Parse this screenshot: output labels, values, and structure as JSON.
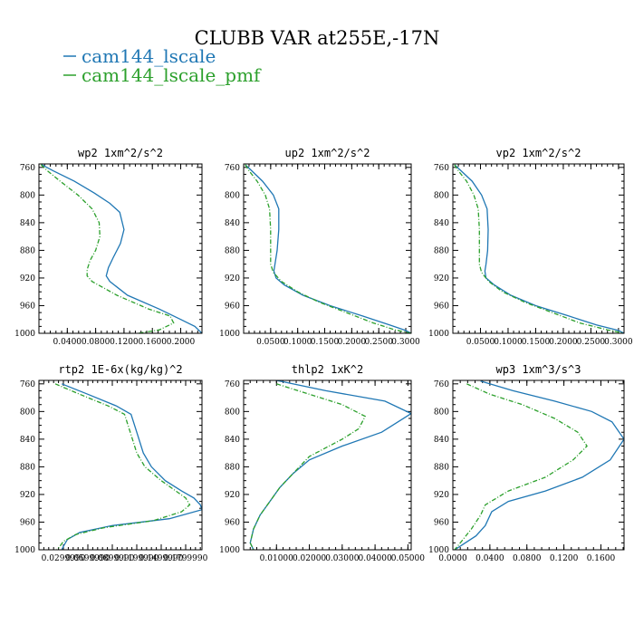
{
  "figure": {
    "title": "CLUBB VAR at255E,-17N",
    "legend": [
      {
        "label": "cam144_lscale",
        "color": "#1f77b4",
        "dash": "none"
      },
      {
        "label": "cam144_lscale_pmf",
        "color": "#2ca02c",
        "dash": "5,2,1,2"
      }
    ]
  },
  "chart_data": [
    {
      "type": "line",
      "title": "wp2  1xm^2/s^2",
      "xlim": [
        0.0,
        0.23
      ],
      "ylim": [
        1000,
        755
      ],
      "xticks": [
        "0.0400",
        "0.0800",
        "0.1200",
        "0.1600",
        "0.2000"
      ],
      "xtick_values": [
        0.04,
        0.08,
        0.12,
        0.16,
        0.2
      ],
      "yticks": [
        "760",
        "800",
        "840",
        "880",
        "920",
        "960",
        "1000"
      ],
      "series": [
        {
          "name": "cam144_lscale",
          "color": "#1f77b4",
          "x": [
            0.004,
            0.02,
            0.05,
            0.078,
            0.1,
            0.114,
            0.12,
            0.115,
            0.105,
            0.098,
            0.095,
            0.1,
            0.125,
            0.17,
            0.2,
            0.22,
            0.23
          ],
          "y": [
            756,
            765,
            780,
            797,
            812,
            825,
            850,
            870,
            890,
            905,
            917,
            925,
            945,
            965,
            980,
            990,
            1000
          ]
        },
        {
          "name": "cam144_lscale_pmf",
          "color": "#2ca02c",
          "x": [
            0.003,
            0.012,
            0.03,
            0.055,
            0.075,
            0.085,
            0.086,
            0.08,
            0.072,
            0.068,
            0.068,
            0.075,
            0.11,
            0.155,
            0.185,
            0.19,
            0.17,
            0.14
          ],
          "y": [
            756,
            765,
            780,
            800,
            820,
            840,
            860,
            880,
            895,
            908,
            917,
            925,
            945,
            965,
            975,
            985,
            995,
            1000
          ]
        }
      ]
    },
    {
      "type": "line",
      "title": "up2  1xm^2/s^2",
      "xlim": [
        0.0,
        0.31
      ],
      "ylim": [
        1000,
        755
      ],
      "xticks": [
        "0.0500",
        "0.1000",
        "0.1500",
        "0.2000",
        "0.2500",
        "0.3000"
      ],
      "xtick_values": [
        0.05,
        0.1,
        0.15,
        0.2,
        0.25,
        0.3
      ],
      "yticks": [
        "760",
        "800",
        "840",
        "880",
        "920",
        "960",
        "1000"
      ],
      "series": [
        {
          "name": "cam144_lscale",
          "color": "#1f77b4",
          "x": [
            0.003,
            0.015,
            0.035,
            0.055,
            0.065,
            0.065,
            0.062,
            0.058,
            0.056,
            0.06,
            0.075,
            0.11,
            0.16,
            0.22,
            0.27,
            0.3,
            0.31
          ],
          "y": [
            756,
            765,
            780,
            800,
            820,
            850,
            880,
            900,
            910,
            920,
            930,
            945,
            960,
            975,
            988,
            996,
            1000
          ]
        },
        {
          "name": "cam144_lscale_pmf",
          "color": "#2ca02c",
          "x": [
            0.003,
            0.01,
            0.025,
            0.04,
            0.048,
            0.05,
            0.05,
            0.05,
            0.055,
            0.07,
            0.1,
            0.14,
            0.19,
            0.24,
            0.28,
            0.31
          ],
          "y": [
            756,
            765,
            780,
            800,
            820,
            850,
            880,
            900,
            912,
            925,
            940,
            955,
            970,
            985,
            995,
            1000
          ]
        }
      ]
    },
    {
      "type": "line",
      "title": "vp2  1xm^2/s^2",
      "xlim": [
        0.0,
        0.31
      ],
      "ylim": [
        1000,
        755
      ],
      "xticks": [
        "0.0500",
        "0.1000",
        "0.1500",
        "0.2000",
        "0.2500",
        "0.3000"
      ],
      "xtick_values": [
        0.05,
        0.1,
        0.15,
        0.2,
        0.25,
        0.3
      ],
      "yticks": [
        "760",
        "800",
        "840",
        "880",
        "920",
        "960",
        "1000"
      ],
      "series": [
        {
          "name": "cam144_lscale",
          "color": "#1f77b4",
          "x": [
            0.003,
            0.015,
            0.035,
            0.052,
            0.062,
            0.064,
            0.063,
            0.06,
            0.058,
            0.06,
            0.075,
            0.105,
            0.15,
            0.21,
            0.26,
            0.3,
            0.31
          ],
          "y": [
            756,
            765,
            780,
            800,
            820,
            850,
            880,
            900,
            910,
            920,
            930,
            945,
            960,
            975,
            988,
            996,
            1000
          ]
        },
        {
          "name": "cam144_lscale_pmf",
          "color": "#2ca02c",
          "x": [
            0.003,
            0.01,
            0.025,
            0.038,
            0.046,
            0.048,
            0.048,
            0.048,
            0.052,
            0.065,
            0.09,
            0.13,
            0.18,
            0.23,
            0.28,
            0.31
          ],
          "y": [
            756,
            765,
            780,
            800,
            820,
            850,
            880,
            900,
            912,
            925,
            940,
            955,
            970,
            985,
            995,
            1000
          ]
        }
      ]
    },
    {
      "type": "line",
      "title": "rtp2  1E-6x(kg/kg)^2",
      "xlim": [
        0.0,
        0.2
      ],
      "ylim": [
        1000,
        755
      ],
      "xticks": [
        "0.0299990",
        "0.0599990",
        "0.0899990",
        "0.1199990",
        "0.1499990",
        "0.1799990"
      ],
      "xtick_values": [
        0.029999,
        0.059999,
        0.089999,
        0.119999,
        0.149999,
        0.179999
      ],
      "yticks": [
        "760",
        "800",
        "840",
        "880",
        "920",
        "960",
        "1000"
      ],
      "series": [
        {
          "name": "cam144_lscale",
          "color": "#1f77b4",
          "x": [
            0.028,
            0.06,
            0.095,
            0.113,
            0.12,
            0.128,
            0.138,
            0.155,
            0.175,
            0.19,
            0.198,
            0.2,
            0.16,
            0.09,
            0.05,
            0.035,
            0.03,
            0.028
          ],
          "y": [
            760,
            775,
            792,
            804,
            830,
            860,
            880,
            900,
            915,
            925,
            935,
            942,
            955,
            965,
            975,
            985,
            995,
            1000
          ]
        },
        {
          "name": "cam144_lscale_pmf",
          "color": "#2ca02c",
          "x": [
            0.02,
            0.05,
            0.085,
            0.105,
            0.112,
            0.12,
            0.13,
            0.15,
            0.168,
            0.18,
            0.185,
            0.175,
            0.14,
            0.08,
            0.045,
            0.03,
            0.025,
            0.022
          ],
          "y": [
            760,
            775,
            792,
            804,
            830,
            860,
            880,
            900,
            915,
            925,
            935,
            945,
            958,
            968,
            978,
            988,
            996,
            1000
          ]
        }
      ]
    },
    {
      "type": "line",
      "title": "thlp2  1xK^2",
      "xlim": [
        0.0,
        0.051
      ],
      "ylim": [
        1000,
        755
      ],
      "xticks": [
        "0.01000",
        "0.02000",
        "0.03000",
        "0.04000",
        "0.05000"
      ],
      "xtick_values": [
        0.01,
        0.02,
        0.03,
        0.04,
        0.05
      ],
      "yticks": [
        "760",
        "800",
        "840",
        "880",
        "920",
        "960",
        "1000"
      ],
      "series": [
        {
          "name": "cam144_lscale",
          "color": "#1f77b4",
          "x": [
            0.01,
            0.025,
            0.043,
            0.051,
            0.042,
            0.03,
            0.02,
            0.015,
            0.011,
            0.008,
            0.005,
            0.003,
            0.002,
            0.003
          ],
          "y": [
            755,
            770,
            785,
            803,
            830,
            850,
            870,
            890,
            910,
            930,
            950,
            970,
            990,
            1000
          ]
        },
        {
          "name": "cam144_lscale_pmf",
          "color": "#2ca02c",
          "x": [
            0.01,
            0.02,
            0.03,
            0.037,
            0.035,
            0.03,
            0.02,
            0.015,
            0.011,
            0.008,
            0.005,
            0.003,
            0.002,
            0.003
          ],
          "y": [
            760,
            775,
            790,
            807,
            825,
            840,
            865,
            890,
            910,
            930,
            950,
            970,
            990,
            1000
          ]
        }
      ]
    },
    {
      "type": "line",
      "title": "wp3  1xm^3/s^3",
      "xlim": [
        0.0,
        0.185
      ],
      "ylim": [
        1000,
        755
      ],
      "xticks": [
        "0.0000",
        "0.0400",
        "0.0800",
        "0.1200",
        "0.1600"
      ],
      "xtick_values": [
        0.0,
        0.04,
        0.08,
        0.12,
        0.16
      ],
      "yticks": [
        "760",
        "800",
        "840",
        "880",
        "920",
        "960",
        "1000"
      ],
      "series": [
        {
          "name": "cam144_lscale",
          "color": "#1f77b4",
          "x": [
            0.03,
            0.065,
            0.11,
            0.15,
            0.172,
            0.185,
            0.17,
            0.14,
            0.1,
            0.06,
            0.042,
            0.035,
            0.025,
            0.01,
            0.002
          ],
          "y": [
            756,
            770,
            785,
            800,
            815,
            840,
            870,
            895,
            915,
            930,
            945,
            965,
            980,
            993,
            1000
          ]
        },
        {
          "name": "cam144_lscale_pmf",
          "color": "#2ca02c",
          "x": [
            0.015,
            0.04,
            0.075,
            0.11,
            0.135,
            0.145,
            0.13,
            0.1,
            0.06,
            0.035,
            0.03,
            0.02,
            0.008,
            0.002
          ],
          "y": [
            760,
            775,
            790,
            810,
            830,
            850,
            870,
            895,
            915,
            935,
            950,
            970,
            990,
            1000
          ]
        }
      ]
    }
  ]
}
